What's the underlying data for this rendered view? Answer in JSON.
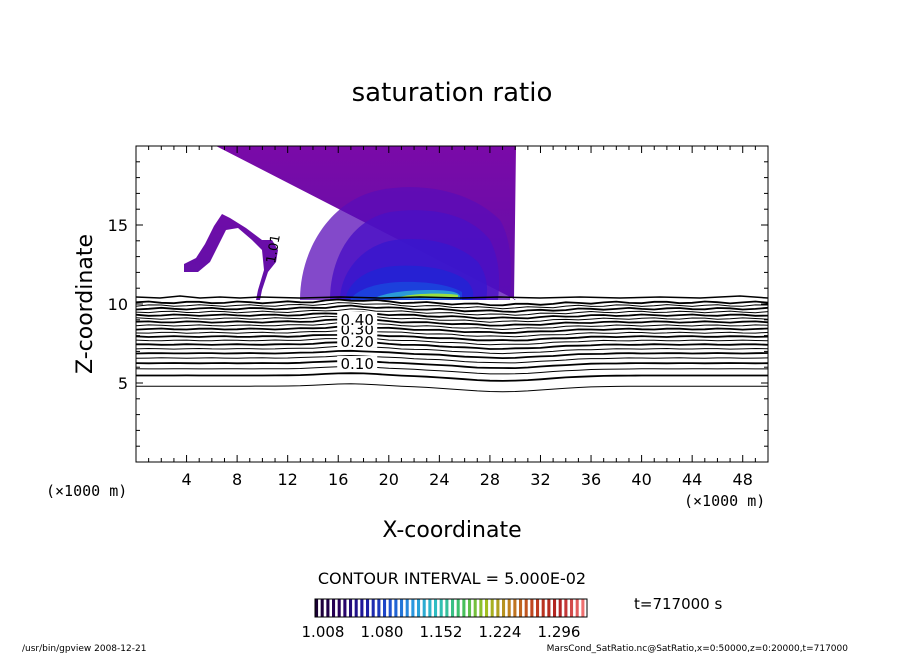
{
  "chart_data": {
    "type": "contour",
    "title": "saturation ratio",
    "xlabel": "X-coordinate",
    "ylabel": "Z-coordinate",
    "x_unit": "(×1000 m)",
    "y_unit": "(×1000 m)",
    "xlim": [
      0,
      50
    ],
    "ylim": [
      0,
      20
    ],
    "x_ticks": [
      4,
      8,
      12,
      16,
      20,
      24,
      28,
      32,
      36,
      40,
      44,
      48
    ],
    "y_ticks": [
      5,
      10,
      15
    ],
    "contour_interval_text": "CONTOUR INTERVAL = 5.000E-02",
    "time_text": "t=717000 s",
    "colorbar": {
      "ticks": [
        "1.008",
        "1.080",
        "1.152",
        "1.224",
        "1.296"
      ],
      "colors": [
        "#1a0033",
        "#2a0060",
        "#1c1aa0",
        "#1e50d0",
        "#2a9ae0",
        "#2fc0c0",
        "#40c060",
        "#a0c020",
        "#c08020",
        "#c04020",
        "#b02020",
        "#f07070"
      ]
    },
    "contour_labels": [
      {
        "text": "0.10",
        "x": 17.5,
        "y": 6.2
      },
      {
        "text": "0.20",
        "x": 17.5,
        "y": 7.6
      },
      {
        "text": "0.30",
        "x": 17.5,
        "y": 8.4
      },
      {
        "text": "0.40",
        "x": 17.5,
        "y": 9.0
      },
      {
        "text": "1.01",
        "x": 10.8,
        "y": 13.5
      }
    ],
    "contour_levels_below": [
      0.05,
      0.1,
      0.15,
      0.2,
      0.25,
      0.3,
      0.35,
      0.4,
      0.45,
      0.5,
      0.55,
      0.6,
      0.65,
      0.7,
      0.75,
      0.8,
      0.85,
      0.9,
      0.95,
      1.0
    ]
  },
  "footer": {
    "left": "/usr/bin/gpview   2008-12-21",
    "right": "MarsCond_SatRatio.nc@SatRatio,x=0:50000,z=0:20000,t=717000"
  }
}
